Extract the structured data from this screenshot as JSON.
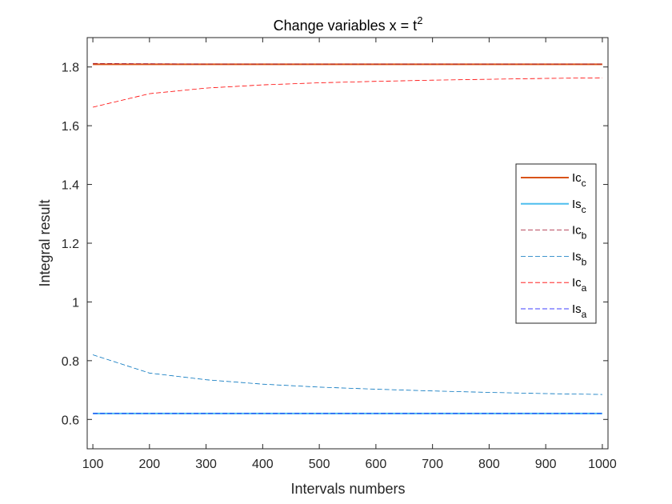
{
  "chart_data": {
    "type": "line",
    "title": "Change variables x = t",
    "title_superscript": "2",
    "xlabel": "Intervals numbers",
    "ylabel": "Integral result",
    "xlim": [
      90,
      1010
    ],
    "ylim": [
      0.5,
      1.9
    ],
    "xticks": [
      100,
      200,
      300,
      400,
      500,
      600,
      700,
      800,
      900,
      1000
    ],
    "yticks": [
      0.6,
      0.8,
      1,
      1.2,
      1.4,
      1.6,
      1.8
    ],
    "ytick_labels": [
      "0.6",
      "0.8",
      "1",
      "1.2",
      "1.4",
      "1.6",
      "1.8"
    ],
    "grid": false,
    "legend_position": "right",
    "x": [
      100,
      200,
      300,
      400,
      500,
      600,
      700,
      800,
      900,
      1000
    ],
    "series": [
      {
        "name": "Ic",
        "subscript": "c",
        "color": "#d95319",
        "style": "solid",
        "values": [
          1.809,
          1.809,
          1.809,
          1.809,
          1.809,
          1.809,
          1.809,
          1.809,
          1.809,
          1.809
        ]
      },
      {
        "name": "Is",
        "subscript": "c",
        "color": "#4dbeee",
        "style": "solid",
        "values": [
          0.62,
          0.62,
          0.62,
          0.62,
          0.62,
          0.62,
          0.62,
          0.62,
          0.62,
          0.62
        ]
      },
      {
        "name": "Ic",
        "subscript": "b",
        "color": "#a2142f",
        "style": "dashed",
        "values": [
          1.812,
          1.811,
          1.81,
          1.81,
          1.81,
          1.81,
          1.81,
          1.81,
          1.81,
          1.81
        ]
      },
      {
        "name": "Is",
        "subscript": "b",
        "color": "#0072bd",
        "style": "dashed",
        "values": [
          0.82,
          0.758,
          0.735,
          0.72,
          0.71,
          0.703,
          0.697,
          0.692,
          0.688,
          0.685
        ]
      },
      {
        "name": "Ic",
        "subscript": "a",
        "color": "#ff0000",
        "style": "dashed",
        "values": [
          1.663,
          1.709,
          1.728,
          1.739,
          1.746,
          1.751,
          1.755,
          1.758,
          1.761,
          1.763
        ]
      },
      {
        "name": "Is",
        "subscript": "a",
        "color": "#0000ff",
        "style": "dashed",
        "values": [
          0.62,
          0.62,
          0.62,
          0.62,
          0.62,
          0.62,
          0.62,
          0.62,
          0.62,
          0.62
        ]
      }
    ]
  }
}
